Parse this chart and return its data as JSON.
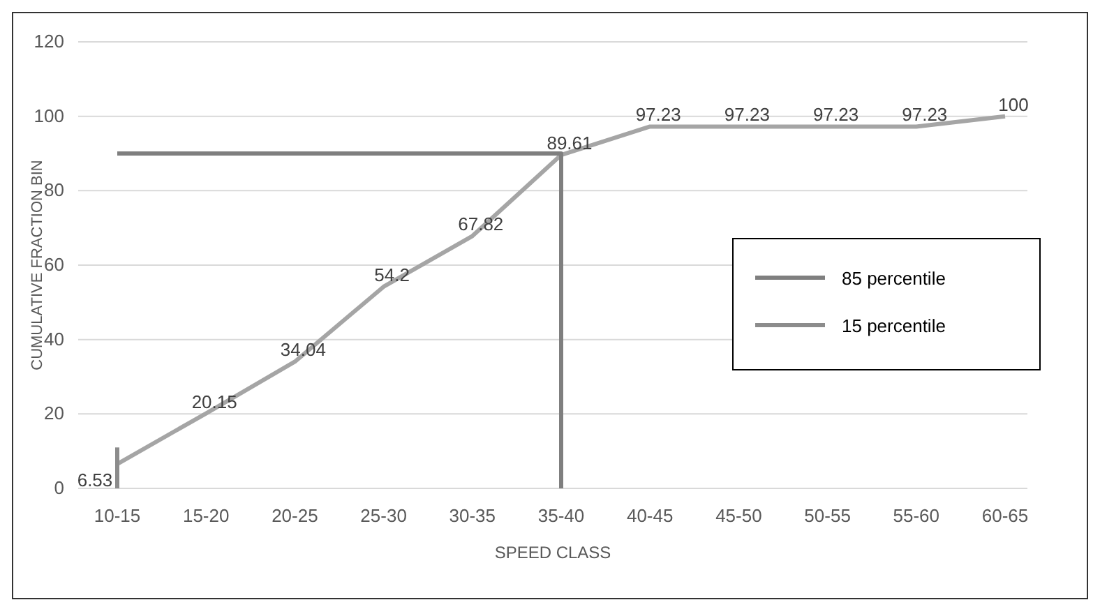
{
  "chart_data": {
    "type": "line",
    "xlabel": "SPEED CLASS",
    "ylabel": "CUMULATIVE FRACTION BIN",
    "categories": [
      "10-15",
      "15-20",
      "20-25",
      "25-30",
      "30-35",
      "35-40",
      "40-45",
      "45-50",
      "50-55",
      "55-60",
      "60-65"
    ],
    "series": [
      {
        "color": "#a5a5a5",
        "values": [
          6.53,
          20.15,
          34.04,
          54.2,
          67.82,
          89.61,
          97.23,
          97.23,
          97.23,
          97.23,
          100
        ],
        "value_labels": [
          "6.53",
          "20.15",
          "34.04",
          "54.2",
          "67.82",
          "89.61",
          "97.23",
          "97.23",
          "97.23",
          "97.23",
          "100"
        ]
      },
      {
        "name": "85 percentile",
        "color": "#7f7f7f",
        "x": [
          "10-15",
          "35-40",
          "35-40"
        ],
        "values": [
          90,
          90,
          0
        ]
      },
      {
        "name": "15 percentile",
        "color": "#8c8c8c",
        "x": [
          "10-15",
          "10-15"
        ],
        "values": [
          11,
          0
        ]
      }
    ],
    "ylim": [
      0,
      120
    ],
    "yticks": [
      0,
      20,
      40,
      60,
      80,
      100,
      120
    ],
    "grid": "y",
    "legend": "right",
    "marker": "none",
    "line_style": "solid"
  }
}
